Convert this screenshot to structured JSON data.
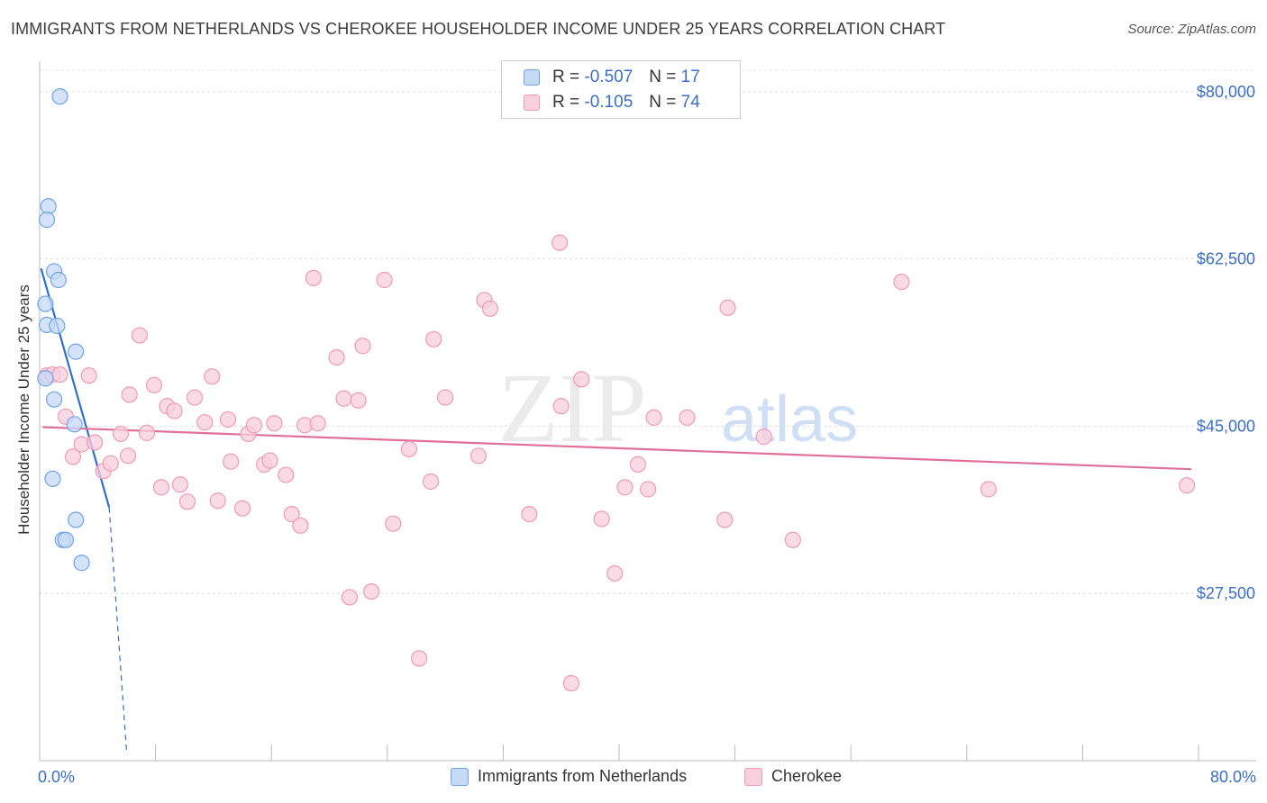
{
  "chart_data": {
    "type": "scatter",
    "title": "IMMIGRANTS FROM NETHERLANDS VS CHEROKEE HOUSEHOLDER INCOME UNDER 25 YEARS CORRELATION CHART",
    "source": "Source: ZipAtlas.com",
    "ylabel": "Householder Income Under 25 years",
    "xlim": [
      0,
      80
    ],
    "ylim": [
      10000,
      83000
    ],
    "x_tick_labels": [
      "0.0%",
      "80.0%"
    ],
    "y_ticks": [
      {
        "value": 80000,
        "label": "$80,000"
      },
      {
        "value": 62500,
        "label": "$62,500"
      },
      {
        "value": 45000,
        "label": "$45,000"
      },
      {
        "value": 27500,
        "label": "$27,500"
      }
    ],
    "watermark": "ZIPatlas",
    "legend": {
      "rows": [
        {
          "r_label": "R =",
          "r_value": "-0.507",
          "n_label": "N =",
          "n_value": "17"
        },
        {
          "r_label": "R =",
          "r_value": "-0.105",
          "n_label": "N =",
          "n_value": "74"
        }
      ]
    },
    "series": [
      {
        "name": "Immigrants from Netherlands",
        "color": "#6fa3e8",
        "fill": "#c5daf7",
        "line_color": "#2f6fd1",
        "trend": {
          "x0": 0.1,
          "y0": 61500,
          "x1": 4.8,
          "y1": 36500,
          "dash_to_x": 6.0,
          "dash_to_y": 11000
        },
        "points": [
          {
            "x": 1.4,
            "y": 79500
          },
          {
            "x": 0.6,
            "y": 68000
          },
          {
            "x": 0.5,
            "y": 66600
          },
          {
            "x": 1.0,
            "y": 61200
          },
          {
            "x": 1.3,
            "y": 60300
          },
          {
            "x": 0.4,
            "y": 57800
          },
          {
            "x": 0.5,
            "y": 55600
          },
          {
            "x": 1.2,
            "y": 55500
          },
          {
            "x": 2.5,
            "y": 52800
          },
          {
            "x": 0.4,
            "y": 50000
          },
          {
            "x": 1.0,
            "y": 47800
          },
          {
            "x": 2.4,
            "y": 45200
          },
          {
            "x": 0.9,
            "y": 39500
          },
          {
            "x": 2.5,
            "y": 35200
          },
          {
            "x": 1.6,
            "y": 33100
          },
          {
            "x": 1.8,
            "y": 33100
          },
          {
            "x": 2.9,
            "y": 30700
          }
        ]
      },
      {
        "name": "Cherokee",
        "color": "#ee9ab5",
        "fill": "#f8cfdc",
        "line_color": "#e0709a",
        "trend": {
          "x0": 0.2,
          "y0": 44900,
          "x1": 79.5,
          "y1": 40500
        },
        "points": [
          {
            "x": 0.5,
            "y": 50300
          },
          {
            "x": 0.9,
            "y": 50400
          },
          {
            "x": 1.4,
            "y": 50400
          },
          {
            "x": 3.4,
            "y": 50300
          },
          {
            "x": 1.8,
            "y": 46000
          },
          {
            "x": 2.3,
            "y": 41800
          },
          {
            "x": 2.9,
            "y": 43100
          },
          {
            "x": 3.8,
            "y": 43300
          },
          {
            "x": 4.4,
            "y": 40300
          },
          {
            "x": 4.9,
            "y": 41100
          },
          {
            "x": 5.6,
            "y": 44200
          },
          {
            "x": 6.1,
            "y": 41900
          },
          {
            "x": 6.2,
            "y": 48300
          },
          {
            "x": 6.9,
            "y": 54500
          },
          {
            "x": 7.4,
            "y": 44300
          },
          {
            "x": 7.9,
            "y": 49300
          },
          {
            "x": 8.4,
            "y": 38600
          },
          {
            "x": 8.8,
            "y": 47100
          },
          {
            "x": 9.3,
            "y": 46600
          },
          {
            "x": 9.7,
            "y": 38900
          },
          {
            "x": 10.2,
            "y": 37100
          },
          {
            "x": 10.7,
            "y": 48000
          },
          {
            "x": 11.4,
            "y": 45400
          },
          {
            "x": 11.9,
            "y": 50200
          },
          {
            "x": 12.3,
            "y": 37200
          },
          {
            "x": 13.0,
            "y": 45700
          },
          {
            "x": 13.2,
            "y": 41300
          },
          {
            "x": 14.0,
            "y": 36400
          },
          {
            "x": 14.4,
            "y": 44200
          },
          {
            "x": 14.8,
            "y": 45100
          },
          {
            "x": 15.5,
            "y": 41000
          },
          {
            "x": 15.9,
            "y": 41400
          },
          {
            "x": 16.2,
            "y": 45300
          },
          {
            "x": 17.0,
            "y": 39900
          },
          {
            "x": 17.4,
            "y": 35800
          },
          {
            "x": 18.0,
            "y": 34600
          },
          {
            "x": 18.3,
            "y": 45100
          },
          {
            "x": 18.9,
            "y": 60500
          },
          {
            "x": 19.2,
            "y": 45300
          },
          {
            "x": 20.5,
            "y": 52200
          },
          {
            "x": 21.0,
            "y": 47900
          },
          {
            "x": 21.4,
            "y": 27100
          },
          {
            "x": 22.0,
            "y": 47700
          },
          {
            "x": 22.3,
            "y": 53400
          },
          {
            "x": 22.9,
            "y": 27700
          },
          {
            "x": 23.8,
            "y": 60300
          },
          {
            "x": 24.4,
            "y": 34800
          },
          {
            "x": 25.5,
            "y": 42600
          },
          {
            "x": 26.2,
            "y": 20700
          },
          {
            "x": 27.0,
            "y": 39200
          },
          {
            "x": 27.2,
            "y": 54100
          },
          {
            "x": 28.0,
            "y": 48000
          },
          {
            "x": 30.3,
            "y": 41900
          },
          {
            "x": 30.7,
            "y": 58200
          },
          {
            "x": 31.1,
            "y": 57300
          },
          {
            "x": 33.8,
            "y": 35800
          },
          {
            "x": 35.9,
            "y": 64200
          },
          {
            "x": 36.0,
            "y": 47100
          },
          {
            "x": 36.7,
            "y": 18100
          },
          {
            "x": 37.4,
            "y": 49900
          },
          {
            "x": 38.8,
            "y": 35300
          },
          {
            "x": 39.7,
            "y": 29600
          },
          {
            "x": 40.4,
            "y": 38600
          },
          {
            "x": 41.3,
            "y": 41000
          },
          {
            "x": 42.0,
            "y": 38400
          },
          {
            "x": 42.4,
            "y": 45900
          },
          {
            "x": 44.7,
            "y": 45900
          },
          {
            "x": 47.3,
            "y": 35200
          },
          {
            "x": 47.5,
            "y": 57400
          },
          {
            "x": 50.0,
            "y": 43900
          },
          {
            "x": 52.0,
            "y": 33100
          },
          {
            "x": 59.5,
            "y": 60100
          },
          {
            "x": 65.5,
            "y": 38400
          },
          {
            "x": 79.2,
            "y": 38800
          }
        ]
      }
    ]
  }
}
